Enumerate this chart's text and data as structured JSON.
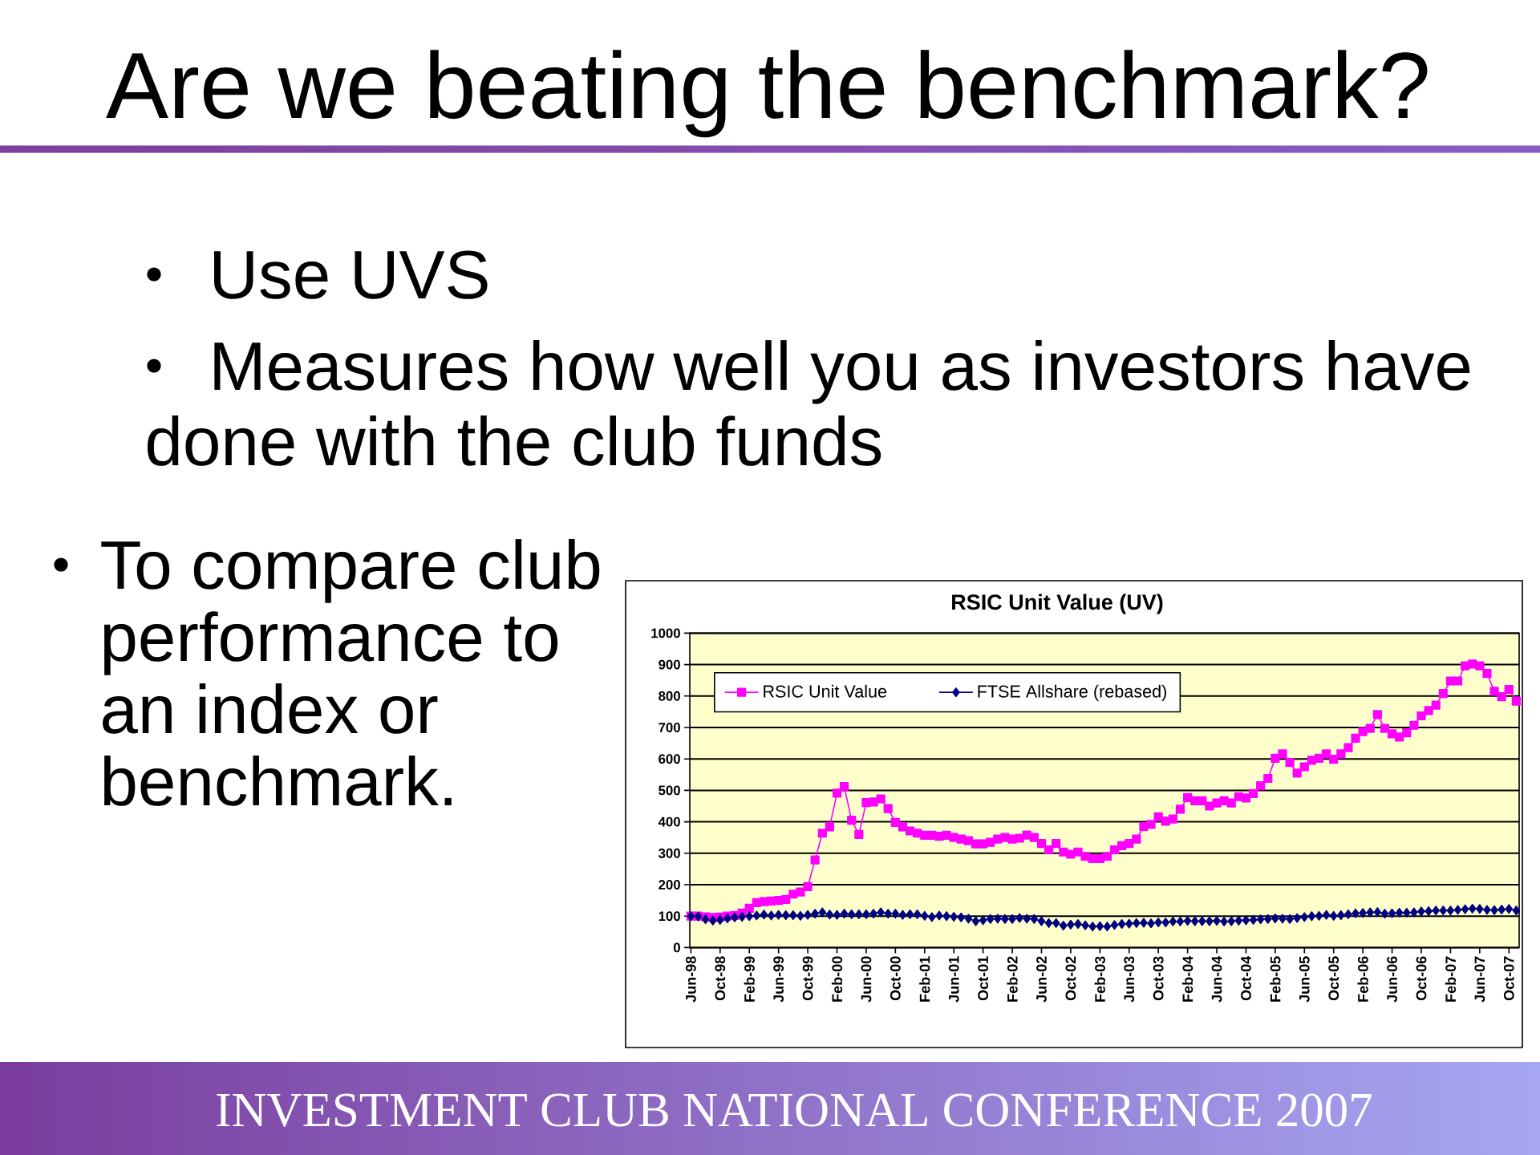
{
  "chart_data": {
    "type": "line",
    "title": "RSIC Unit Value (UV)",
    "annotations": [
      "Are we beating the benchmark?",
      "Use UVS",
      "Measures how well you as investors have done with the club funds",
      "To compare club performance to an index or benchmark.",
      "INVESTMENT CLUB NATIONAL CONFERENCE 2007"
    ],
    "categories": [
      "Jun-98",
      null,
      null,
      null,
      "Oct-98",
      null,
      null,
      null,
      "Feb-99",
      null,
      null,
      null,
      "Jun-99",
      null,
      null,
      null,
      "Oct-99",
      null,
      null,
      null,
      "Feb-00",
      null,
      null,
      null,
      "Jun-00",
      null,
      null,
      null,
      "Oct-00",
      null,
      null,
      null,
      "Feb-01",
      null,
      null,
      null,
      "Jun-01",
      null,
      null,
      null,
      "Oct-01",
      null,
      null,
      null,
      "Feb-02",
      null,
      null,
      null,
      "Jun-02",
      null,
      null,
      null,
      "Oct-02",
      null,
      null,
      null,
      "Feb-03",
      null,
      null,
      null,
      "Jun-03",
      null,
      null,
      null,
      "Oct-03",
      null,
      null,
      null,
      "Feb-04",
      null,
      null,
      null,
      "Jun-04",
      null,
      null,
      null,
      "Oct-04",
      null,
      null,
      null,
      "Feb-05",
      null,
      null,
      null,
      "Jun-05",
      null,
      null,
      null,
      "Oct-05",
      null,
      null,
      null,
      "Feb-06",
      null,
      null,
      null,
      "Jun-06",
      null,
      null,
      null,
      "Oct-06",
      null,
      null,
      null,
      "Feb-07",
      null,
      null,
      null,
      "Jun-07",
      null,
      null,
      null,
      "Oct-07",
      null
    ],
    "series": [
      {
        "name": "RSIC Unit Value",
        "color": "#ff00ff",
        "marker": "square",
        "values": [
          100,
          100,
          98,
          96,
          97,
          100,
          102,
          110,
          125,
          143,
          146,
          148,
          150,
          153,
          170,
          177,
          194,
          279,
          364,
          384,
          491,
          512,
          405,
          360,
          461,
          463,
          473,
          442,
          398,
          384,
          371,
          364,
          357,
          357,
          354,
          357,
          350,
          345,
          340,
          330,
          330,
          335,
          345,
          350,
          345,
          348,
          358,
          350,
          331,
          311,
          331,
          304,
          297,
          304,
          290,
          283,
          283,
          290,
          311,
          324,
          331,
          345,
          385,
          392,
          416,
          402,
          409,
          440,
          477,
          467,
          467,
          450,
          460,
          467,
          460,
          480,
          476,
          490,
          515,
          538,
          602,
          616,
          589,
          555,
          575,
          596,
          602,
          616,
          599,
          616,
          636,
          666,
          687,
          697,
          741,
          697,
          680,
          670,
          683,
          707,
          737,
          754,
          771,
          808,
          848,
          848,
          896,
          902,
          896,
          872,
          815,
          798,
          821,
          784
        ]
      },
      {
        "name": "FTSE Allshare (rebased)",
        "color": "#000080",
        "marker": "diamond",
        "values": [
          100,
          99,
          90,
          86,
          88,
          93,
          96,
          98,
          100,
          102,
          105,
          102,
          104,
          103,
          103,
          101,
          104,
          108,
          112,
          105,
          104,
          108,
          106,
          106,
          106,
          108,
          112,
          108,
          108,
          104,
          106,
          106,
          101,
          97,
          102,
          100,
          98,
          96,
          92,
          84,
          87,
          91,
          92,
          91,
          91,
          94,
          92,
          91,
          84,
          78,
          78,
          70,
          73,
          75,
          71,
          67,
          68,
          67,
          72,
          75,
          76,
          78,
          79,
          77,
          80,
          80,
          83,
          83,
          85,
          84,
          84,
          84,
          85,
          83,
          84,
          86,
          87,
          88,
          90,
          91,
          93,
          92,
          91,
          94,
          97,
          100,
          101,
          104,
          101,
          103,
          106,
          109,
          110,
          112,
          113,
          108,
          109,
          111,
          111,
          112,
          115,
          116,
          118,
          118,
          118,
          120,
          122,
          124,
          123,
          120,
          119,
          121,
          123,
          118
        ]
      }
    ],
    "ylim": [
      0,
      1000
    ],
    "yticks": [
      0,
      100,
      200,
      300,
      400,
      500,
      600,
      700,
      800,
      900,
      1000
    ],
    "grid": "y",
    "legend": "top left"
  }
}
